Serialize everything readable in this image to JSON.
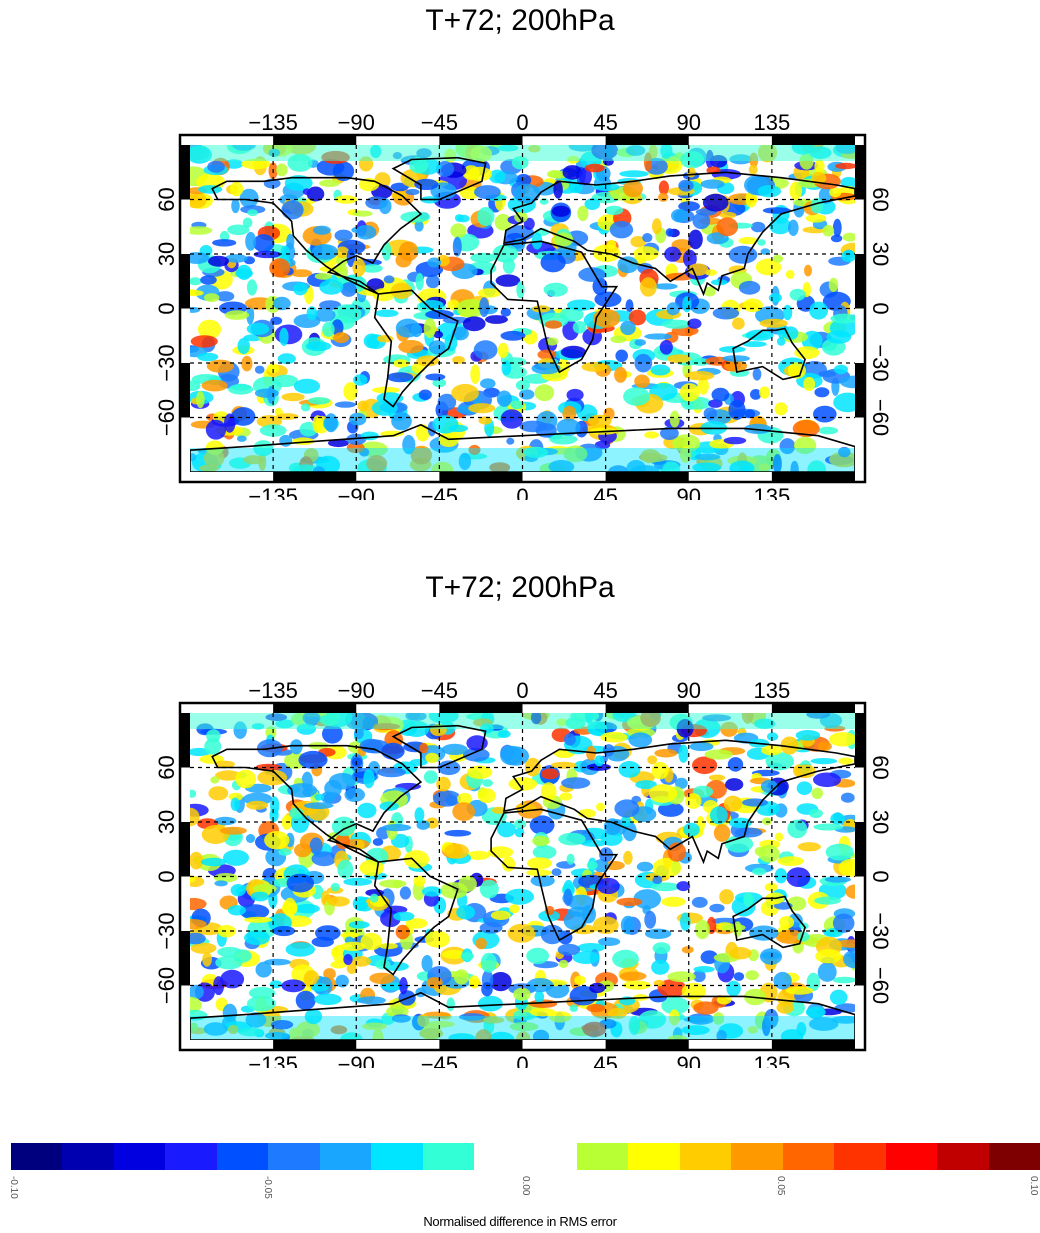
{
  "maps": [
    {
      "title": "T+72; 200hPa",
      "lon_ticks": [
        "−135",
        "−90",
        "−45",
        "0",
        "45",
        "90",
        "135"
      ],
      "lat_ticks": [
        "60",
        "30",
        "0",
        "−30",
        "−60"
      ],
      "field_seed": 7
    },
    {
      "title": "T+72; 200hPa",
      "lon_ticks": [
        "−135",
        "−90",
        "−45",
        "0",
        "45",
        "90",
        "135"
      ],
      "lat_ticks": [
        "60",
        "30",
        "0",
        "−30",
        "−60"
      ],
      "field_seed": 19
    }
  ],
  "colorbar": {
    "colors": [
      "#00007f",
      "#0000b0",
      "#0000e0",
      "#1a1aff",
      "#0050ff",
      "#1e7bff",
      "#19a6ff",
      "#00e5ff",
      "#33ffd6",
      "#ffffff",
      "#ffffff",
      "#b8ff33",
      "#ffff00",
      "#ffcc00",
      "#ff9900",
      "#ff6600",
      "#ff3300",
      "#ff0000",
      "#c00000",
      "#7f0000"
    ],
    "labels": [
      "-0.10",
      "-0.05",
      "0.00",
      "0.05",
      "0.10"
    ],
    "caption": "Normalised difference in RMS error"
  }
}
